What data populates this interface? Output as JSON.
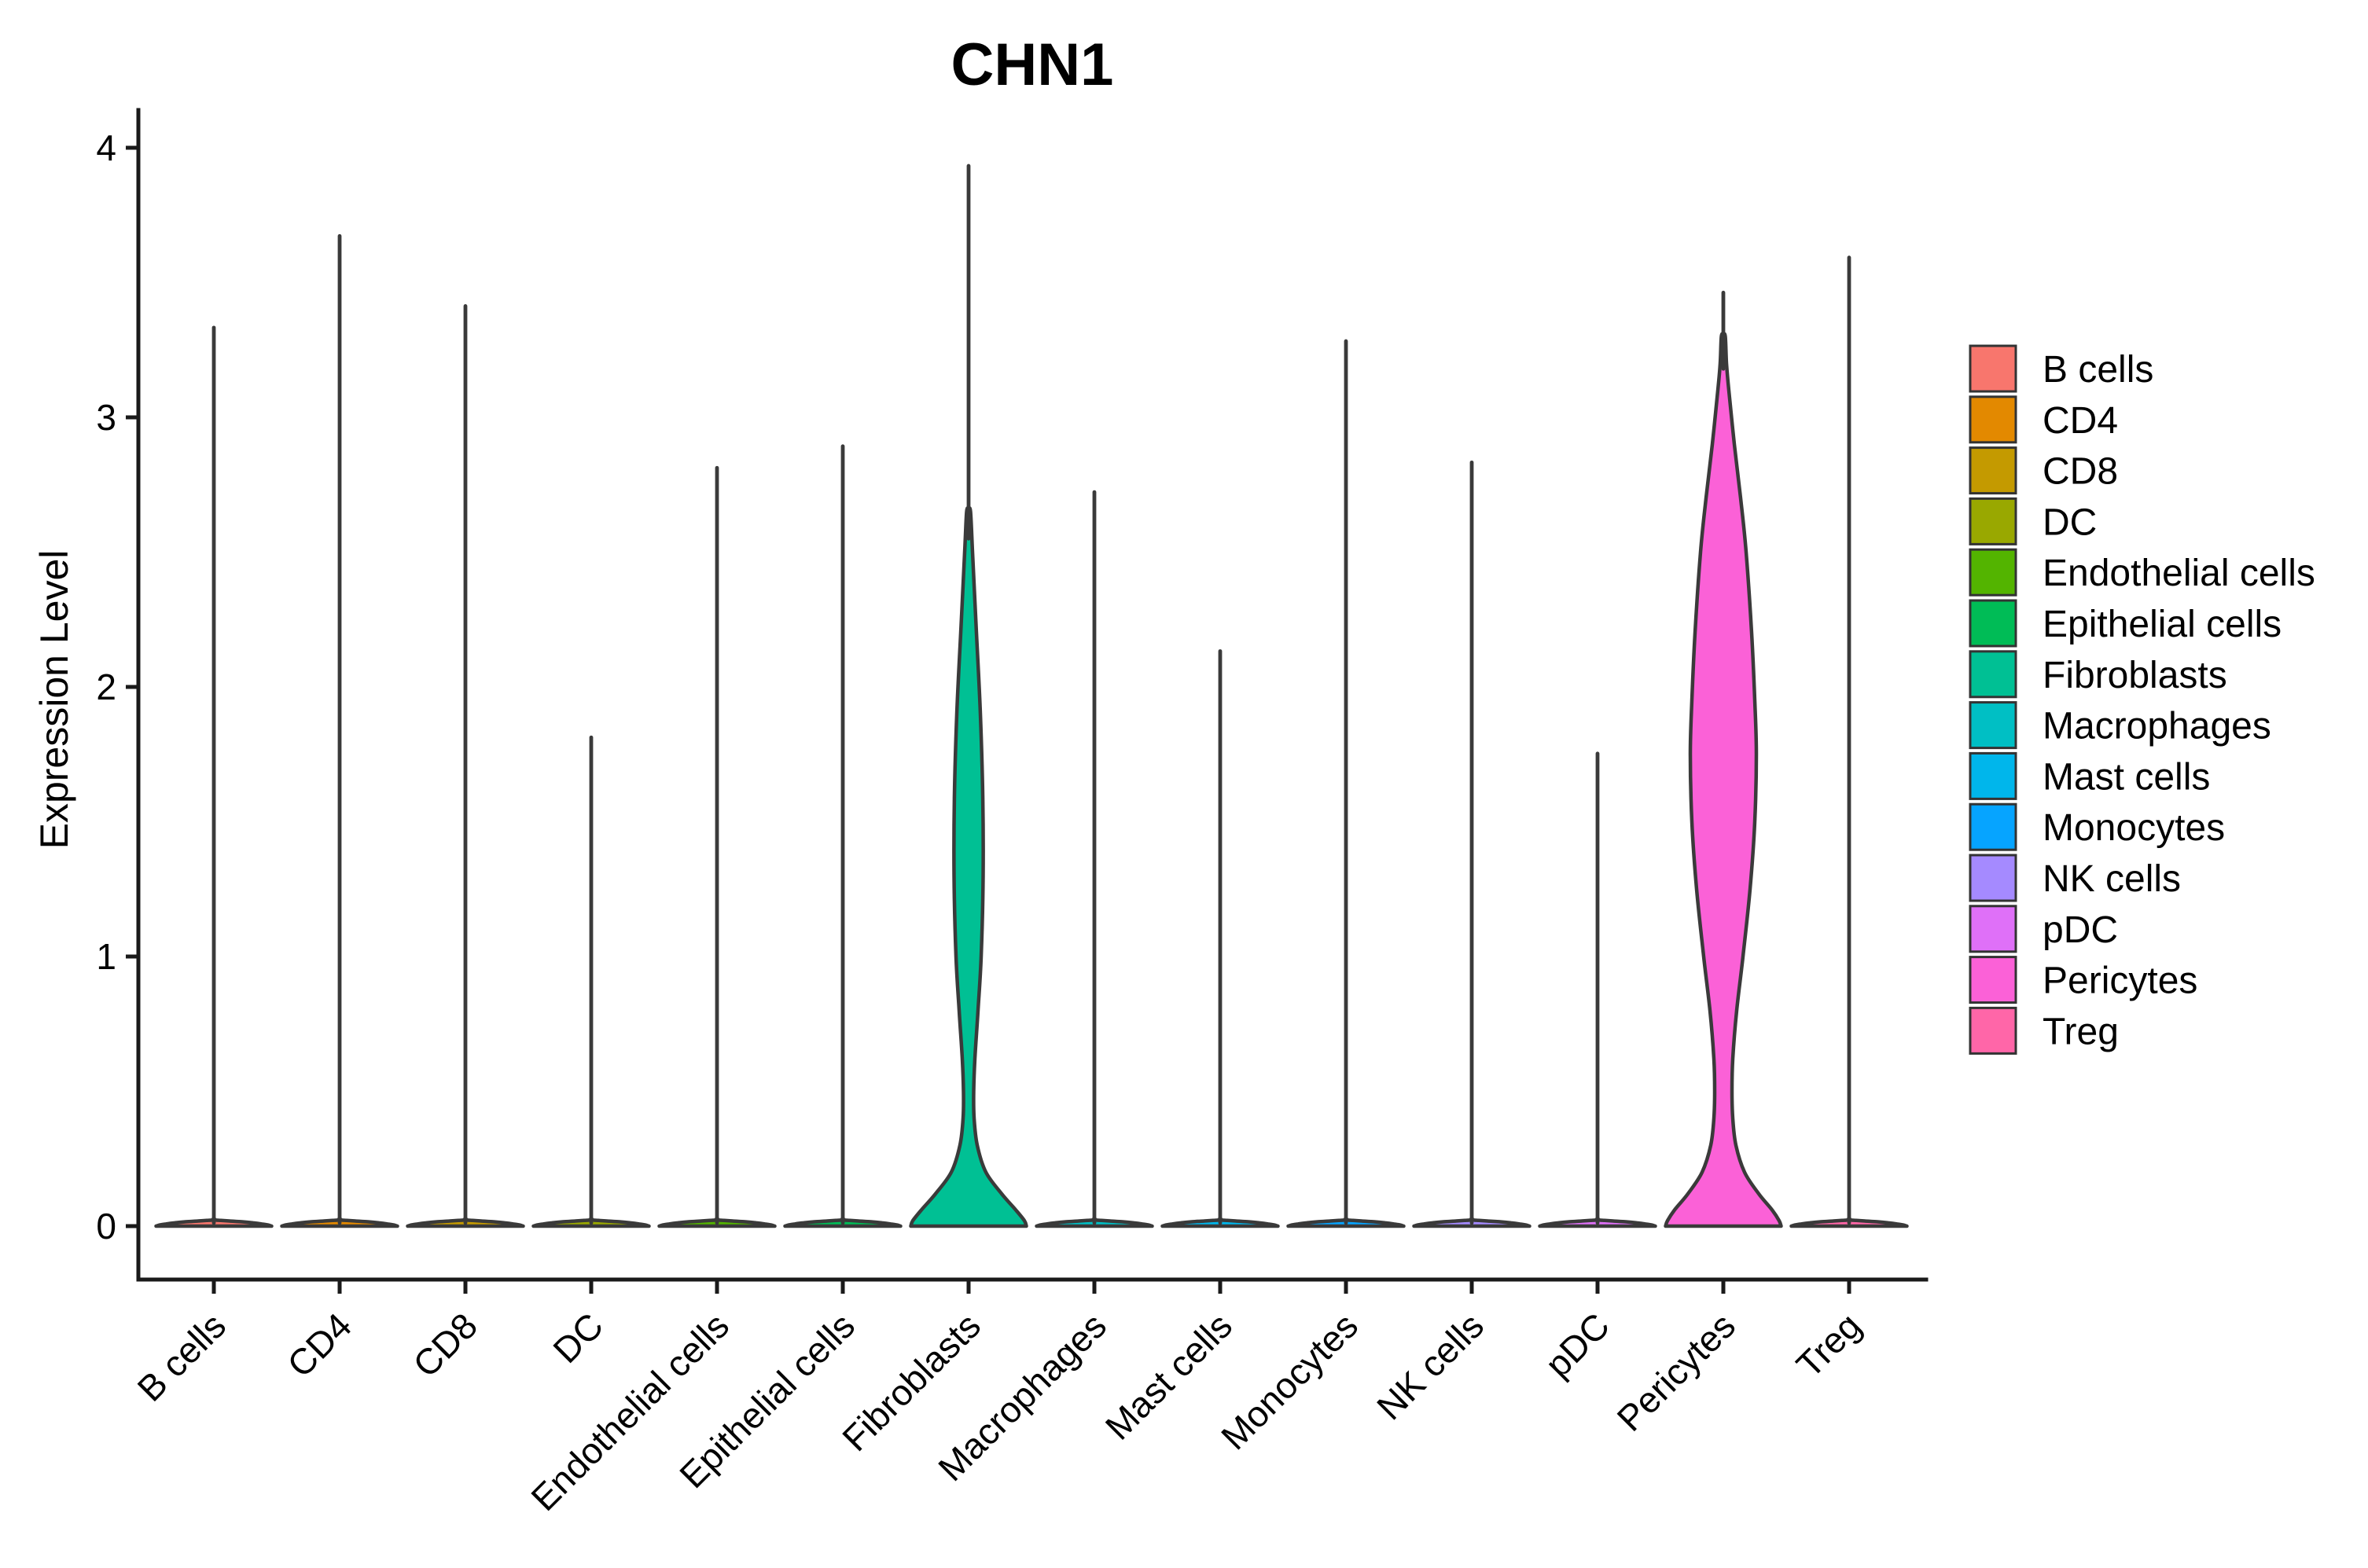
{
  "title": "CHN1",
  "chart_data": {
    "type": "violin",
    "title": "CHN1",
    "xlabel": "",
    "ylabel": "Expression Level",
    "ylim": [
      0,
      4
    ],
    "yticks": [
      "0",
      "1",
      "2",
      "3",
      "4"
    ],
    "grid": "off",
    "legend_position": "right",
    "categories": [
      "B cells",
      "CD4",
      "CD8",
      "DC",
      "Endothelial cells",
      "Epithelial cells",
      "Fibroblasts",
      "Macrophages",
      "Mast cells",
      "Monocytes",
      "NK cells",
      "pDC",
      "Pericytes",
      "Treg"
    ],
    "series": [
      {
        "label": "B cells",
        "color": "#F8766D",
        "max_expression": 3.34,
        "shape": "spike"
      },
      {
        "label": "CD4",
        "color": "#E38900",
        "max_expression": 3.68,
        "shape": "spike"
      },
      {
        "label": "CD8",
        "color": "#C49A00",
        "max_expression": 3.42,
        "shape": "spike"
      },
      {
        "label": "DC",
        "color": "#99A800",
        "max_expression": 1.82,
        "shape": "spike"
      },
      {
        "label": "Endothelial cells",
        "color": "#53B400",
        "max_expression": 2.82,
        "shape": "spike"
      },
      {
        "label": "Epithelial cells",
        "color": "#00BC56",
        "max_expression": 2.9,
        "shape": "spike"
      },
      {
        "label": "Fibroblasts",
        "color": "#00C094",
        "max_expression": 3.94,
        "shape": "bulged",
        "profile_key": "fibroblasts",
        "spike_to": 2.55
      },
      {
        "label": "Macrophages",
        "color": "#00BFC4",
        "max_expression": 2.73,
        "shape": "spike"
      },
      {
        "label": "Mast cells",
        "color": "#00B6EB",
        "max_expression": 2.14,
        "shape": "spike"
      },
      {
        "label": "Monocytes",
        "color": "#06A4FF",
        "max_expression": 3.29,
        "shape": "spike"
      },
      {
        "label": "NK cells",
        "color": "#A58AFF",
        "max_expression": 2.84,
        "shape": "spike"
      },
      {
        "label": "pDC",
        "color": "#DF70F8",
        "max_expression": 1.76,
        "shape": "spike"
      },
      {
        "label": "Pericytes",
        "color": "#FB61D7",
        "max_expression": 3.47,
        "shape": "bulged",
        "profile_key": "pericytes",
        "spike_to": 3.18
      },
      {
        "label": "Treg",
        "color": "#FF66A8",
        "max_expression": 3.6,
        "shape": "spike"
      }
    ],
    "violin_profiles": {
      "note": "pairs of [expression_value, half_width_px] describing density outline",
      "baseline": [
        [
          0,
          73.5
        ],
        [
          0.004,
          69
        ],
        [
          0.008,
          61
        ],
        [
          0.012,
          50
        ],
        [
          0.016,
          36
        ],
        [
          0.019,
          20
        ],
        [
          0.021,
          9
        ],
        [
          0.0225,
          2.5
        ]
      ],
      "fibroblasts": [
        [
          0,
          73.5
        ],
        [
          0.02,
          71
        ],
        [
          0.06,
          60
        ],
        [
          0.12,
          42
        ],
        [
          0.2,
          22
        ],
        [
          0.3,
          11
        ],
        [
          0.4,
          7
        ],
        [
          0.5,
          6.5
        ],
        [
          0.62,
          8
        ],
        [
          0.8,
          12
        ],
        [
          1.0,
          16
        ],
        [
          1.3,
          18.5
        ],
        [
          1.6,
          18
        ],
        [
          1.9,
          15
        ],
        [
          2.2,
          10
        ],
        [
          2.5,
          5
        ],
        [
          2.65,
          2.5
        ]
      ],
      "pericytes": [
        [
          0,
          73.5
        ],
        [
          0.02,
          71
        ],
        [
          0.06,
          62
        ],
        [
          0.12,
          45
        ],
        [
          0.2,
          27
        ],
        [
          0.3,
          16
        ],
        [
          0.4,
          12
        ],
        [
          0.5,
          11
        ],
        [
          0.62,
          12
        ],
        [
          0.8,
          17
        ],
        [
          1.0,
          25
        ],
        [
          1.25,
          34
        ],
        [
          1.5,
          40
        ],
        [
          1.75,
          42
        ],
        [
          1.95,
          40
        ],
        [
          2.2,
          36
        ],
        [
          2.5,
          29
        ],
        [
          2.7,
          22
        ],
        [
          2.9,
          14
        ],
        [
          3.1,
          7
        ],
        [
          3.2,
          4
        ],
        [
          3.3,
          2.5
        ]
      ]
    }
  },
  "legend": {
    "items": [
      "B cells",
      "CD4",
      "CD8",
      "DC",
      "Endothelial cells",
      "Epithelial cells",
      "Fibroblasts",
      "Macrophages",
      "Mast cells",
      "Monocytes",
      "NK cells",
      "pDC",
      "Pericytes",
      "Treg"
    ]
  }
}
